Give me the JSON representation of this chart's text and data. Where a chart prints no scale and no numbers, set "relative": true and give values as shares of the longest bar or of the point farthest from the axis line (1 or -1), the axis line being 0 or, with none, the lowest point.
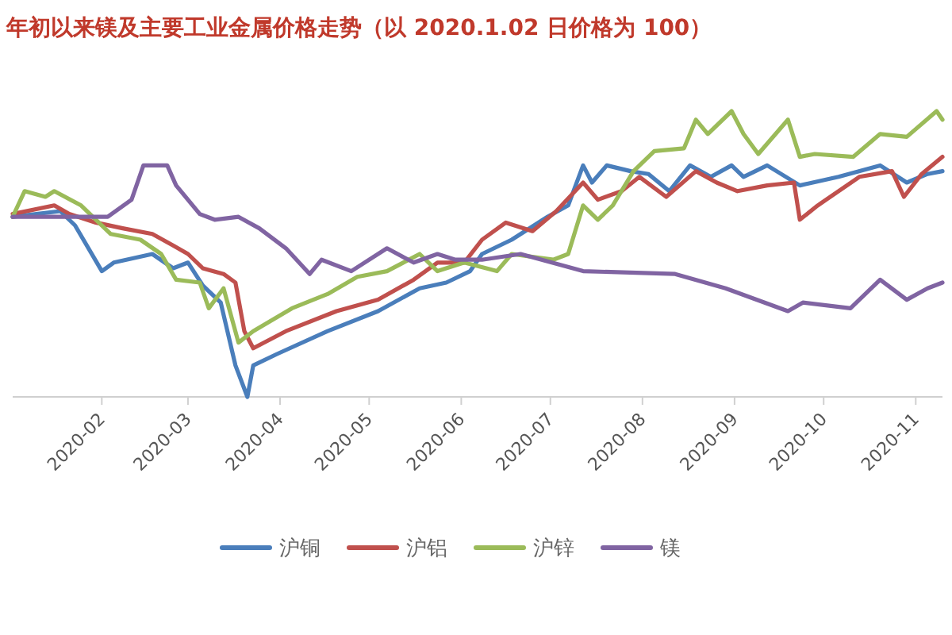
{
  "chart_data": {
    "type": "line",
    "title": "年初以来镁及主要工业金属价格走势（以 2020.1.02 日价格为 100）",
    "relative": true,
    "legend": "bottom",
    "xlim": [
      "2020-01-02",
      "2020-11-10"
    ],
    "xticks": [
      "2020-02",
      "2020-03",
      "2020-04",
      "2020-05",
      "2020-06",
      "2020-07",
      "2020-08",
      "2020-09",
      "2020-10",
      "2020-11"
    ],
    "series": [
      {
        "name": "沪铜",
        "color": "#4a7ebb",
        "x": [
          "2020-01-02",
          "2020-01-18",
          "2020-01-23",
          "2020-02-01",
          "2020-02-05",
          "2020-02-18",
          "2020-02-25",
          "2020-03-01",
          "2020-03-06",
          "2020-03-12",
          "2020-03-17",
          "2020-03-21",
          "2020-03-23",
          "2020-03-31",
          "2020-04-17",
          "2020-05-04",
          "2020-05-18",
          "2020-05-27",
          "2020-06-04",
          "2020-06-08",
          "2020-06-18",
          "2020-06-30",
          "2020-07-07",
          "2020-07-12",
          "2020-07-15",
          "2020-07-20",
          "2020-07-28",
          "2020-08-03",
          "2020-08-10",
          "2020-08-17",
          "2020-08-24",
          "2020-08-31",
          "2020-09-04",
          "2020-09-12",
          "2020-09-23",
          "2020-10-06",
          "2020-10-20",
          "2020-10-29",
          "2020-11-05",
          "2020-11-10"
        ],
        "values": [
          0.63,
          0.65,
          0.6,
          0.44,
          0.47,
          0.5,
          0.45,
          0.47,
          0.39,
          0.33,
          0.11,
          0,
          0.11,
          0.15,
          0.23,
          0.3,
          0.38,
          0.4,
          0.44,
          0.5,
          0.55,
          0.63,
          0.67,
          0.81,
          0.75,
          0.81,
          0.79,
          0.78,
          0.72,
          0.81,
          0.77,
          0.81,
          0.77,
          0.81,
          0.74,
          0.77,
          0.81,
          0.75,
          0.78,
          0.79
        ]
      },
      {
        "name": "沪铝",
        "color": "#c0504d",
        "x": [
          "2020-01-02",
          "2020-01-16",
          "2020-01-21",
          "2020-01-30",
          "2020-02-08",
          "2020-02-18",
          "2020-02-25",
          "2020-03-01",
          "2020-03-06",
          "2020-03-13",
          "2020-03-17",
          "2020-03-20",
          "2020-03-23",
          "2020-04-03",
          "2020-04-20",
          "2020-05-04",
          "2020-05-16",
          "2020-05-24",
          "2020-06-02",
          "2020-06-08",
          "2020-06-16",
          "2020-06-25",
          "2020-07-03",
          "2020-07-12",
          "2020-07-17",
          "2020-07-25",
          "2020-07-31",
          "2020-08-09",
          "2020-08-19",
          "2020-08-26",
          "2020-09-02",
          "2020-09-12",
          "2020-09-21",
          "2020-09-23",
          "2020-09-29",
          "2020-10-13",
          "2020-10-24",
          "2020-10-28",
          "2020-11-03",
          "2020-11-10"
        ],
        "values": [
          0.64,
          0.67,
          0.64,
          0.61,
          0.59,
          0.57,
          0.53,
          0.5,
          0.45,
          0.43,
          0.4,
          0.23,
          0.17,
          0.23,
          0.3,
          0.34,
          0.41,
          0.47,
          0.47,
          0.55,
          0.61,
          0.58,
          0.65,
          0.75,
          0.69,
          0.72,
          0.77,
          0.7,
          0.79,
          0.75,
          0.72,
          0.74,
          0.75,
          0.62,
          0.67,
          0.77,
          0.79,
          0.7,
          0.78,
          0.84
        ]
      },
      {
        "name": "沪锌",
        "color": "#9bbb59",
        "x": [
          "2020-01-02",
          "2020-01-06",
          "2020-01-13",
          "2020-01-16",
          "2020-01-25",
          "2020-02-04",
          "2020-02-14",
          "2020-02-21",
          "2020-02-26",
          "2020-03-05",
          "2020-03-08",
          "2020-03-13",
          "2020-03-18",
          "2020-03-23",
          "2020-04-05",
          "2020-04-17",
          "2020-04-27",
          "2020-05-07",
          "2020-05-18",
          "2020-05-24",
          "2020-06-02",
          "2020-06-13",
          "2020-06-18",
          "2020-07-02",
          "2020-07-07",
          "2020-07-12",
          "2020-07-17",
          "2020-07-22",
          "2020-07-29",
          "2020-08-05",
          "2020-08-15",
          "2020-08-19",
          "2020-08-23",
          "2020-08-31",
          "2020-09-04",
          "2020-09-09",
          "2020-09-19",
          "2020-09-23",
          "2020-09-28",
          "2020-10-11",
          "2020-10-20",
          "2020-10-29",
          "2020-11-08",
          "2020-11-10"
        ],
        "values": [
          0.63,
          0.72,
          0.7,
          0.72,
          0.67,
          0.57,
          0.55,
          0.5,
          0.41,
          0.4,
          0.31,
          0.38,
          0.19,
          0.23,
          0.31,
          0.36,
          0.42,
          0.44,
          0.5,
          0.44,
          0.47,
          0.44,
          0.5,
          0.48,
          0.5,
          0.67,
          0.62,
          0.67,
          0.79,
          0.86,
          0.87,
          0.97,
          0.92,
          1.0,
          0.92,
          0.85,
          0.97,
          0.84,
          0.85,
          0.84,
          0.92,
          0.91,
          1.0,
          0.97
        ]
      },
      {
        "name": "镁",
        "color": "#8064a2",
        "x": [
          "2020-01-02",
          "2020-02-03",
          "2020-02-11",
          "2020-02-15",
          "2020-02-23",
          "2020-02-26",
          "2020-03-05",
          "2020-03-10",
          "2020-03-18",
          "2020-03-25",
          "2020-04-03",
          "2020-04-11",
          "2020-04-15",
          "2020-04-25",
          "2020-05-07",
          "2020-05-16",
          "2020-05-24",
          "2020-05-30",
          "2020-06-08",
          "2020-06-21",
          "2020-07-12",
          "2020-08-12",
          "2020-08-29",
          "2020-09-19",
          "2020-09-24",
          "2020-10-10",
          "2020-10-20",
          "2020-10-29",
          "2020-11-05",
          "2020-11-10"
        ],
        "values": [
          0.63,
          0.63,
          0.69,
          0.81,
          0.81,
          0.74,
          0.64,
          0.62,
          0.63,
          0.59,
          0.52,
          0.43,
          0.48,
          0.44,
          0.52,
          0.47,
          0.5,
          0.48,
          0.48,
          0.5,
          0.44,
          0.43,
          0.38,
          0.3,
          0.33,
          0.31,
          0.41,
          0.34,
          0.38,
          0.4
        ]
      }
    ]
  }
}
